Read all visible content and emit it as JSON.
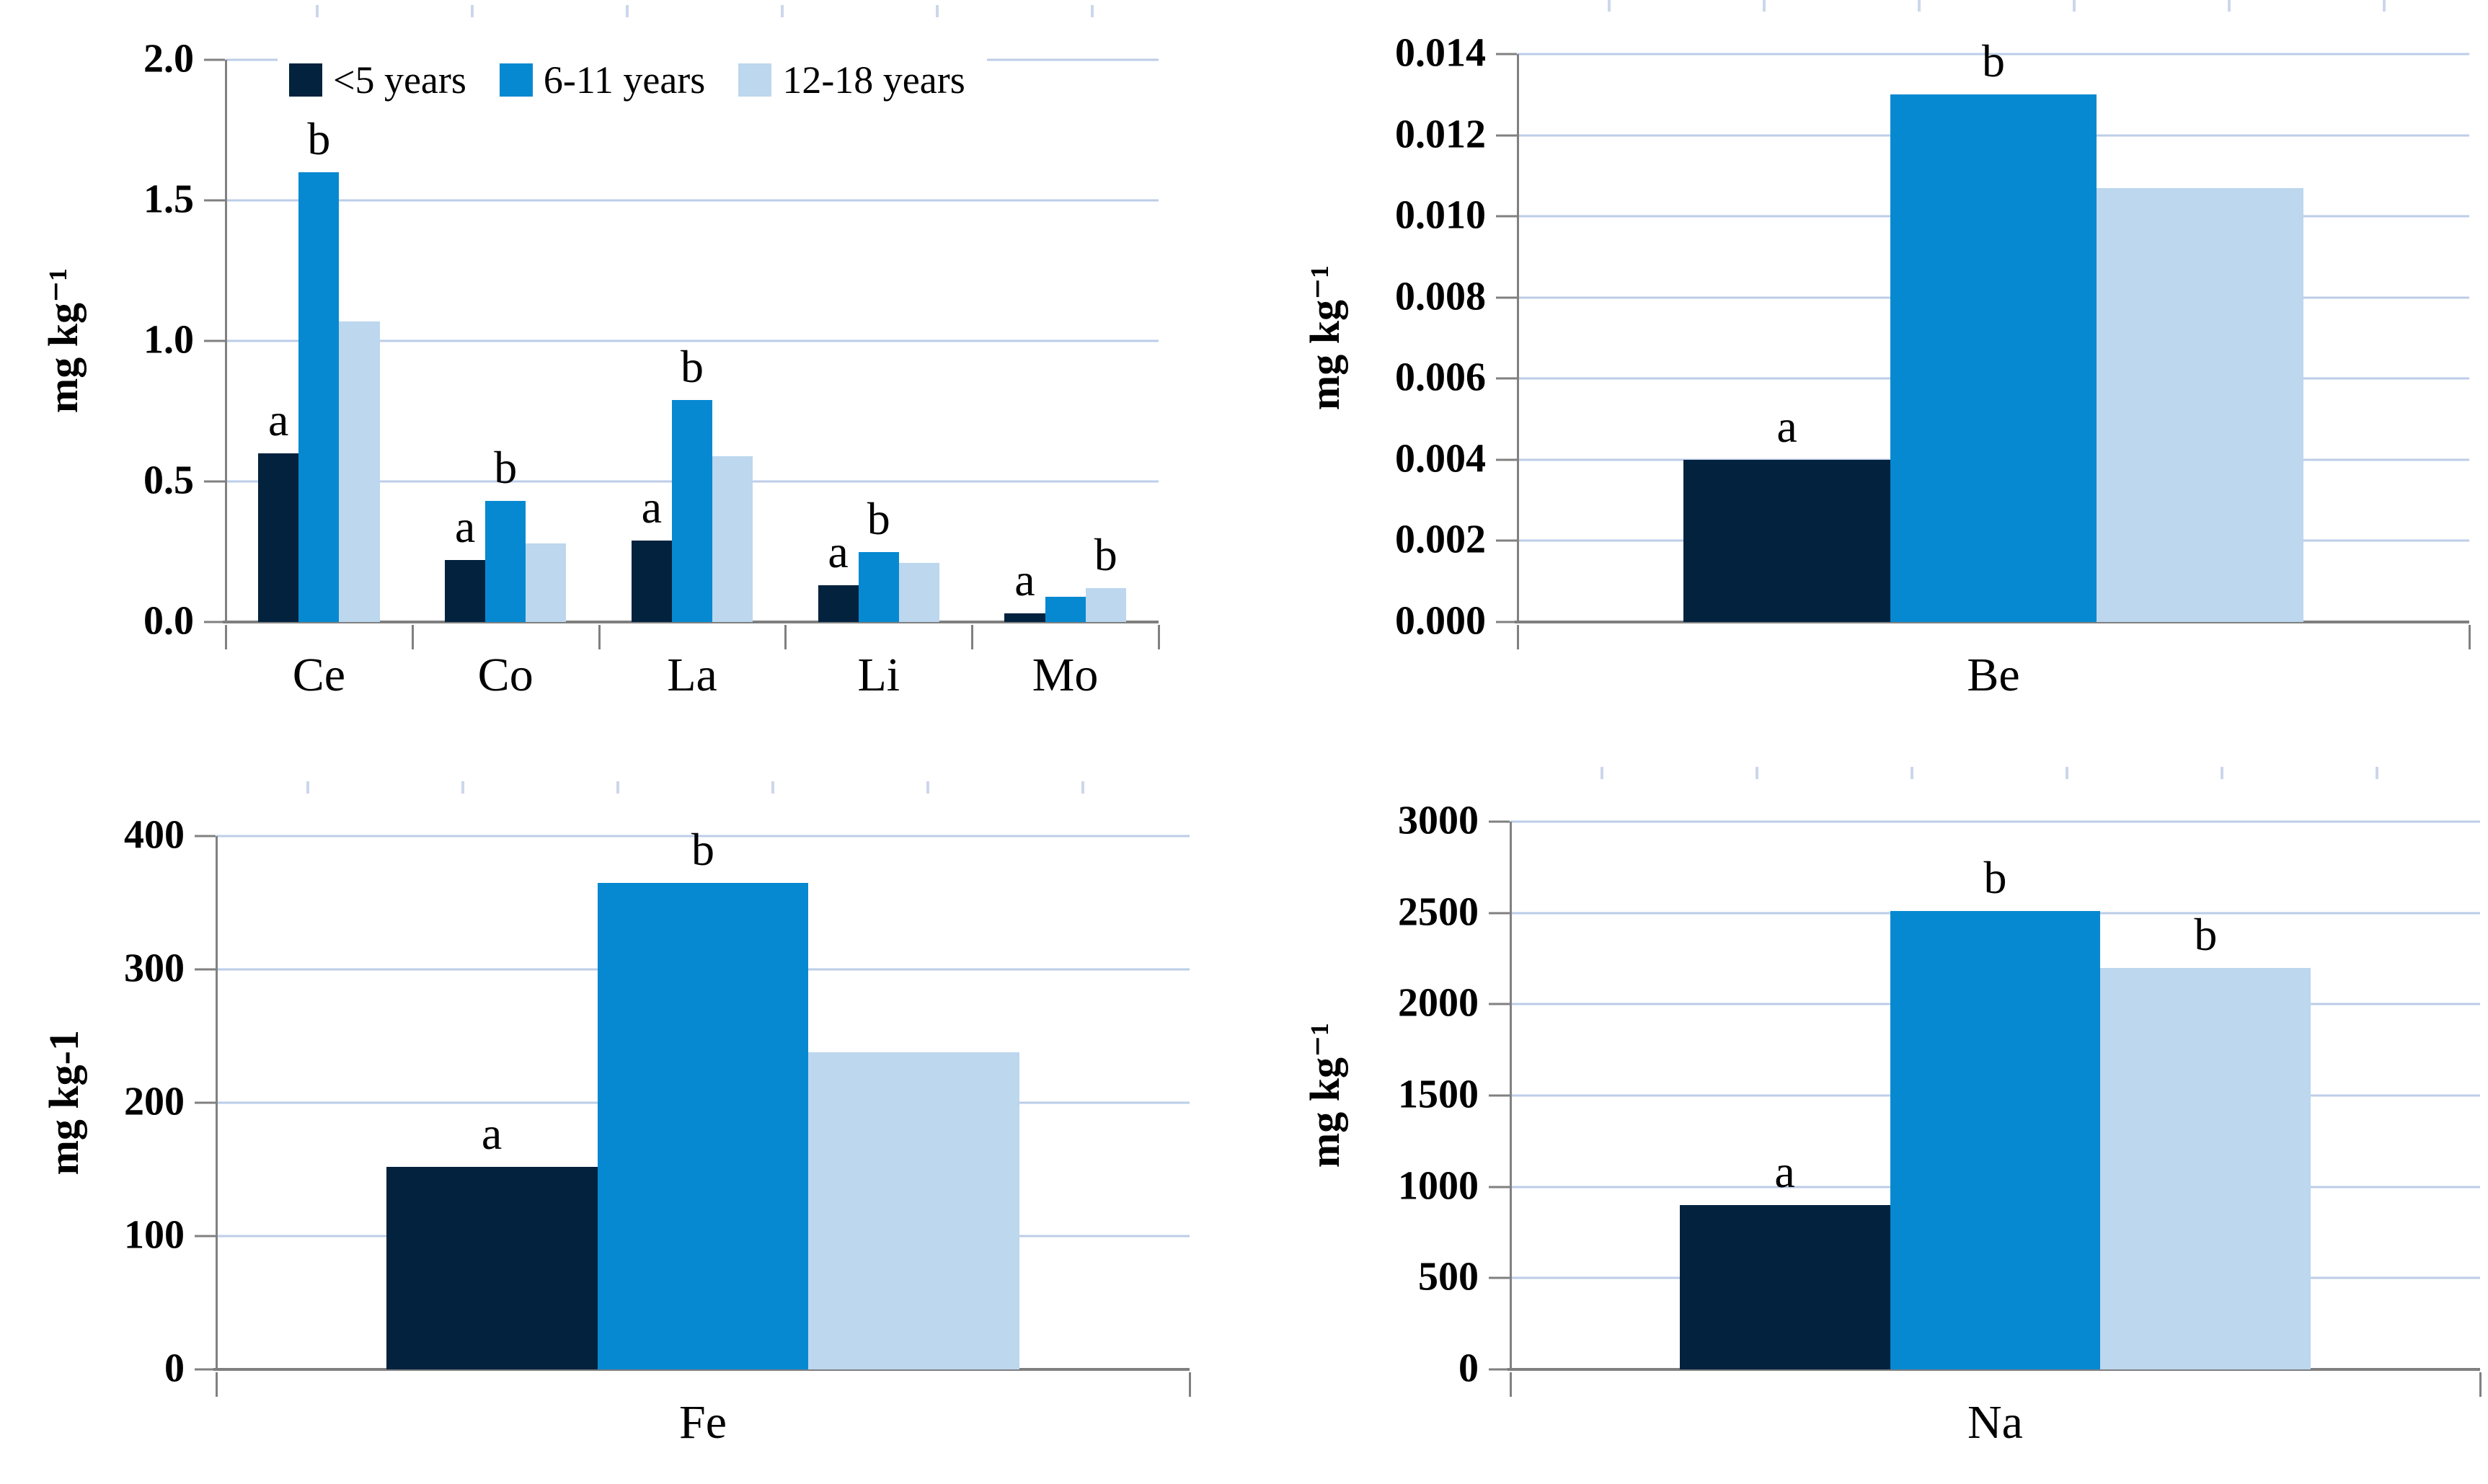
{
  "colors": {
    "series": [
      "#02223e",
      "#0689d1",
      "#bcd7ee"
    ],
    "gridline": "#bccde8",
    "axis": "#7f7f7f",
    "text": "#000000",
    "background": "#ffffff"
  },
  "legend": {
    "position": "top-inside-first-panel",
    "items": [
      {
        "label": "<5 years",
        "color": "#02223e"
      },
      {
        "label": "6-11 years",
        "color": "#0689d1"
      },
      {
        "label": "12-18 years",
        "color": "#bcd7ee"
      }
    ]
  },
  "chart_data": [
    {
      "id": "trace-elements-multi",
      "type": "bar",
      "position": "top-left",
      "title": "",
      "xlabel": "",
      "ylabel": "mg kg⁻¹",
      "categories": [
        "Ce",
        "Co",
        "La",
        "Li",
        "Mo"
      ],
      "series": [
        {
          "name": "<5 years",
          "values": [
            0.6,
            0.22,
            0.29,
            0.13,
            0.03
          ]
        },
        {
          "name": "6-11 years",
          "values": [
            1.6,
            0.43,
            0.79,
            0.25,
            0.09
          ]
        },
        {
          "name": "12-18 years",
          "values": [
            1.07,
            0.28,
            0.59,
            0.21,
            0.12
          ]
        }
      ],
      "annotations": [
        [
          "a",
          "b",
          ""
        ],
        [
          "a",
          "b",
          ""
        ],
        [
          "a",
          "b",
          ""
        ],
        [
          "a",
          "b",
          ""
        ],
        [
          "a",
          "",
          "b"
        ]
      ],
      "ylim": [
        0,
        2.0
      ],
      "ytick_labels": [
        "2.0",
        "1.5",
        "1.0",
        "0.5",
        "0.0"
      ],
      "grid": true,
      "legend": true
    },
    {
      "id": "beryllium",
      "type": "bar",
      "position": "top-right",
      "title": "",
      "xlabel": "",
      "ylabel": "mg kg⁻¹",
      "categories": [
        "Be"
      ],
      "series": [
        {
          "name": "<5 years",
          "values": [
            0.004
          ]
        },
        {
          "name": "6-11 years",
          "values": [
            0.013
          ]
        },
        {
          "name": "12-18 years",
          "values": [
            0.0107
          ]
        }
      ],
      "annotations": [
        [
          "a",
          "b",
          ""
        ]
      ],
      "ylim": [
        0,
        0.014
      ],
      "ytick_labels": [
        "0.014",
        "0.012",
        "0.010",
        "0.008",
        "0.006",
        "0.004",
        "0.002",
        "0.000"
      ],
      "grid": true,
      "legend": false
    },
    {
      "id": "iron",
      "type": "bar",
      "position": "bottom-left",
      "title": "",
      "xlabel": "",
      "ylabel": "mg kg-1",
      "categories": [
        "Fe"
      ],
      "series": [
        {
          "name": "<5 years",
          "values": [
            152
          ]
        },
        {
          "name": "6-11 years",
          "values": [
            365
          ]
        },
        {
          "name": "12-18 years",
          "values": [
            238
          ]
        }
      ],
      "annotations": [
        [
          "a",
          "b",
          ""
        ]
      ],
      "ylim": [
        0,
        400
      ],
      "ytick_labels": [
        "400",
        "300",
        "200",
        "100",
        "0"
      ],
      "grid": true,
      "legend": false
    },
    {
      "id": "sodium",
      "type": "bar",
      "position": "bottom-right",
      "title": "",
      "xlabel": "",
      "ylabel": "mg kg⁻¹",
      "categories": [
        "Na"
      ],
      "series": [
        {
          "name": "<5 years",
          "values": [
            900
          ]
        },
        {
          "name": "6-11 years",
          "values": [
            2510
          ]
        },
        {
          "name": "12-18 years",
          "values": [
            2200
          ]
        }
      ],
      "annotations": [
        [
          "a",
          "b",
          "b"
        ]
      ],
      "ylim": [
        0,
        3000
      ],
      "ytick_labels": [
        "3000",
        "2500",
        "2000",
        "1500",
        "1000",
        "500",
        "0"
      ],
      "grid": true,
      "legend": false
    }
  ]
}
